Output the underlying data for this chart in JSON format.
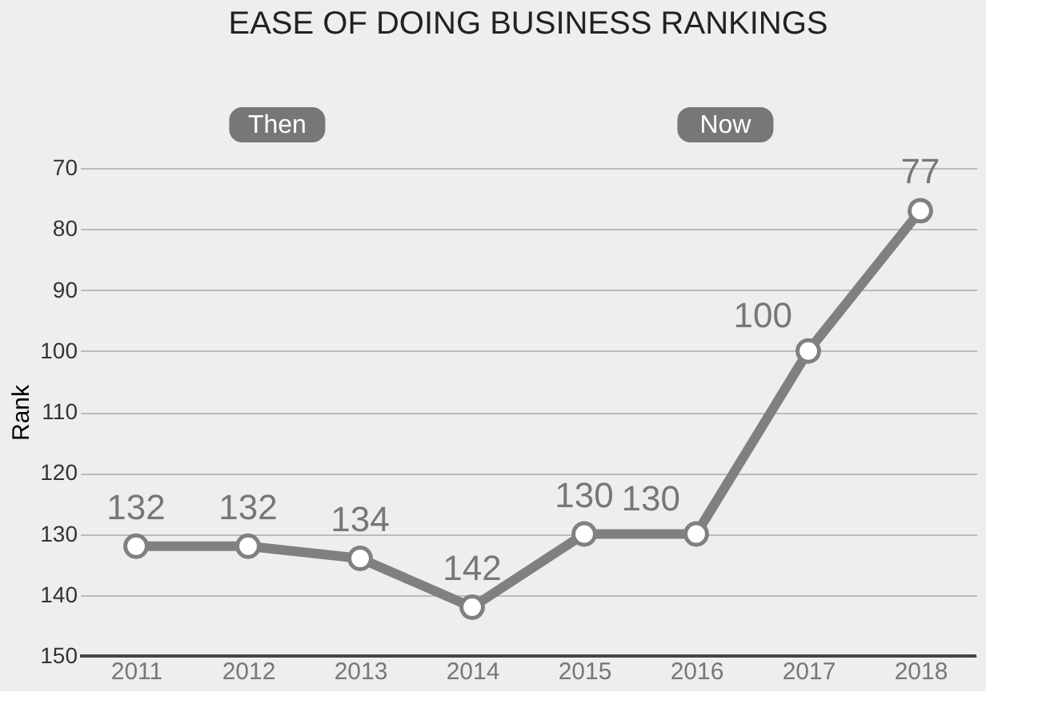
{
  "chart_data": {
    "type": "line",
    "title": "EASE OF DOING BUSINESS RANKINGS",
    "ylabel": "Rank",
    "categories": [
      "2011",
      "2012",
      "2013",
      "2014",
      "2015",
      "2016",
      "2017",
      "2018"
    ],
    "series": [
      {
        "color": "#808080",
        "values": [
          132,
          132,
          134,
          142,
          130,
          130,
          100,
          77
        ]
      }
    ],
    "ylim": [
      150,
      70
    ],
    "yticks": [
      70,
      80,
      90,
      100,
      110,
      120,
      130,
      140,
      150
    ],
    "grid": "y",
    "marker": "circle",
    "line_style": "solid",
    "data_labels": true,
    "legend": false,
    "annotations": [
      "Then",
      "Now"
    ]
  }
}
